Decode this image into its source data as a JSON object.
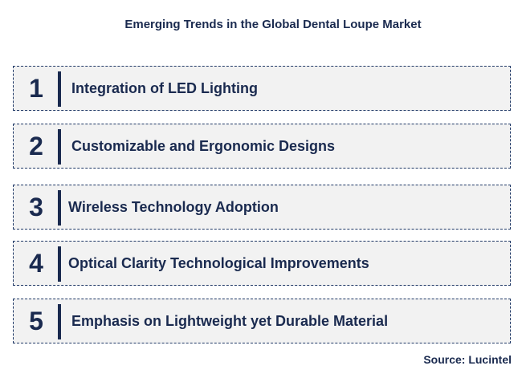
{
  "title": "Emerging Trends in the Global Dental Loupe Market",
  "trends": [
    {
      "number": "1",
      "label": "Integration of LED Lighting"
    },
    {
      "number": "2",
      "label": "Customizable and Ergonomic Designs"
    },
    {
      "number": "3",
      "label": "Wireless Technology Adoption"
    },
    {
      "number": "4",
      "label": "Optical Clarity Technological Improvements"
    },
    {
      "number": "5",
      "label": "Emphasis on Lightweight yet Durable Material"
    }
  ],
  "source": "Source: Lucintel",
  "colors": {
    "text": "#1a2a4f",
    "box_fill": "#f2f2f2",
    "box_border": "#1f3866"
  }
}
